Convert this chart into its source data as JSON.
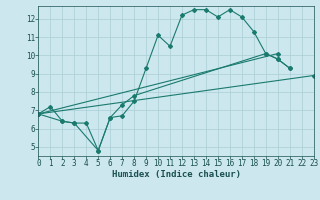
{
  "xlabel": "Humidex (Indice chaleur)",
  "xlim": [
    0,
    23
  ],
  "ylim": [
    4.5,
    12.7
  ],
  "yticks": [
    5,
    6,
    7,
    8,
    9,
    10,
    11,
    12
  ],
  "xticks": [
    0,
    1,
    2,
    3,
    4,
    5,
    6,
    7,
    8,
    9,
    10,
    11,
    12,
    13,
    14,
    15,
    16,
    17,
    18,
    19,
    20,
    21,
    22,
    23
  ],
  "background_color": "#cce8ee",
  "grid_color": "#aacdd5",
  "line_color": "#1a7a6e",
  "line1_x": [
    0,
    1,
    2,
    3,
    4,
    5,
    6,
    7,
    8,
    9,
    10,
    11,
    12,
    13,
    14,
    15,
    16,
    17,
    18,
    19,
    20,
    21
  ],
  "line1_y": [
    6.8,
    7.2,
    6.4,
    6.3,
    6.3,
    4.8,
    6.6,
    6.7,
    7.5,
    9.3,
    11.1,
    10.5,
    12.2,
    12.5,
    12.5,
    12.1,
    12.5,
    12.1,
    11.3,
    10.1,
    9.8,
    9.3
  ],
  "line2_x": [
    0,
    2,
    3,
    5,
    6,
    7,
    8,
    19,
    20,
    21
  ],
  "line2_y": [
    6.8,
    6.4,
    6.3,
    4.8,
    6.6,
    7.3,
    7.8,
    10.1,
    9.8,
    9.3
  ],
  "line3_x": [
    0,
    23
  ],
  "line3_y": [
    6.8,
    8.9
  ],
  "line4_x": [
    0,
    20
  ],
  "line4_y": [
    6.8,
    10.1
  ],
  "tick_fontsize": 5.5,
  "xlabel_fontsize": 6.5
}
